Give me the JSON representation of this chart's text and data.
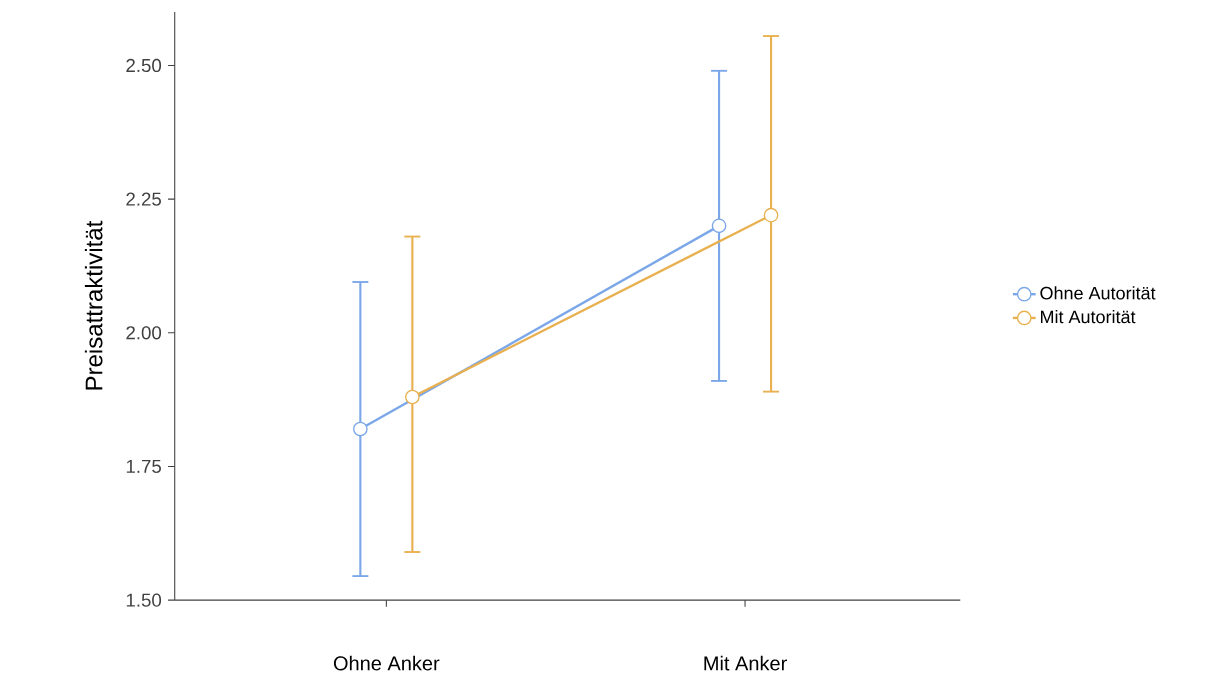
{
  "chart_data": {
    "type": "line",
    "ylabel": "Preisattraktivität",
    "categories": [
      "Ohne Anker",
      "Mit Anker"
    ],
    "series": [
      {
        "name": "Ohne Autorität",
        "color": "#7ba7e8",
        "values": [
          1.82,
          2.2
        ],
        "errors": [
          [
            1.545,
            2.095
          ],
          [
            1.91,
            2.49
          ]
        ]
      },
      {
        "name": "Mit Autorität",
        "color": "#e8b04f",
        "values": [
          1.88,
          2.22
        ],
        "errors": [
          [
            1.59,
            2.18
          ],
          [
            1.89,
            2.555
          ]
        ]
      }
    ],
    "ylim": [
      1.5,
      2.6
    ],
    "yticks": [
      {
        "value": 1.5,
        "label": "1.50"
      },
      {
        "value": 1.75,
        "label": "1.75"
      },
      {
        "value": 2.0,
        "label": "2.00"
      },
      {
        "value": 2.25,
        "label": "2.25"
      },
      {
        "value": 2.5,
        "label": "2.50"
      }
    ],
    "marker": "circle",
    "line_style": "solid",
    "legend": "right",
    "grid": false
  }
}
